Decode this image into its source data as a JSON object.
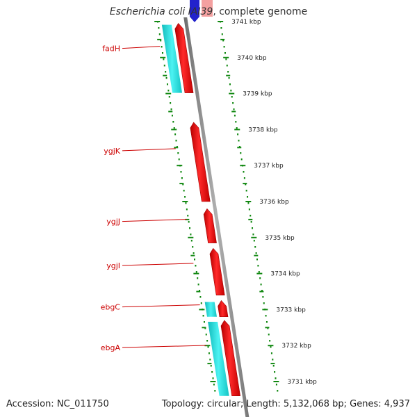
{
  "title": {
    "organism": "Escherichia coli IAI39",
    "suffix": ", complete genome"
  },
  "footer": {
    "accession": "Accession: NC_011750",
    "summary": "Topology: circular; Length: 5,132,068 bp; Genes: 4,937"
  },
  "scale": {
    "unit": "kbp",
    "ticks": [
      {
        "kbp": 3741,
        "label": "3741 kbp"
      },
      {
        "kbp": 3740,
        "label": "3740 kbp"
      },
      {
        "kbp": 3739,
        "label": "3739 kbp"
      },
      {
        "kbp": 3738,
        "label": "3738 kbp"
      },
      {
        "kbp": 3737,
        "label": "3737 kbp"
      },
      {
        "kbp": 3736,
        "label": "3736 kbp"
      },
      {
        "kbp": 3735,
        "label": "3735 kbp"
      },
      {
        "kbp": 3734,
        "label": "3734 kbp"
      },
      {
        "kbp": 3733,
        "label": "3733 kbp"
      },
      {
        "kbp": 3732,
        "label": "3732 kbp"
      },
      {
        "kbp": 3731,
        "label": "3731 kbp"
      }
    ]
  },
  "genes": [
    {
      "name": "fadH",
      "start_kbp": 3739.02,
      "end_kbp": 3740.95,
      "strand": "reverse",
      "has_cds_track": true
    },
    {
      "name": "ygjK",
      "start_kbp": 3736.0,
      "end_kbp": 3738.2,
      "strand": "reverse",
      "has_cds_track": false
    },
    {
      "name": "ygjJ",
      "start_kbp": 3734.85,
      "end_kbp": 3735.8,
      "strand": "reverse",
      "has_cds_track": false
    },
    {
      "name": "ygjI",
      "start_kbp": 3733.4,
      "end_kbp": 3734.7,
      "strand": "reverse",
      "has_cds_track": false
    },
    {
      "name": "ebgC",
      "start_kbp": 3732.8,
      "end_kbp": 3733.25,
      "strand": "reverse",
      "has_cds_track": true
    },
    {
      "name": "ebgA",
      "start_kbp": 3730.6,
      "end_kbp": 3732.7,
      "strand": "reverse",
      "has_cds_track": true
    }
  ],
  "colors": {
    "gene": "#ff0000",
    "cds": "#00d8d8",
    "backbone": "#888888",
    "tick": "#118811",
    "gene_label": "#cc0000",
    "forward_gene": "#2222cc"
  }
}
